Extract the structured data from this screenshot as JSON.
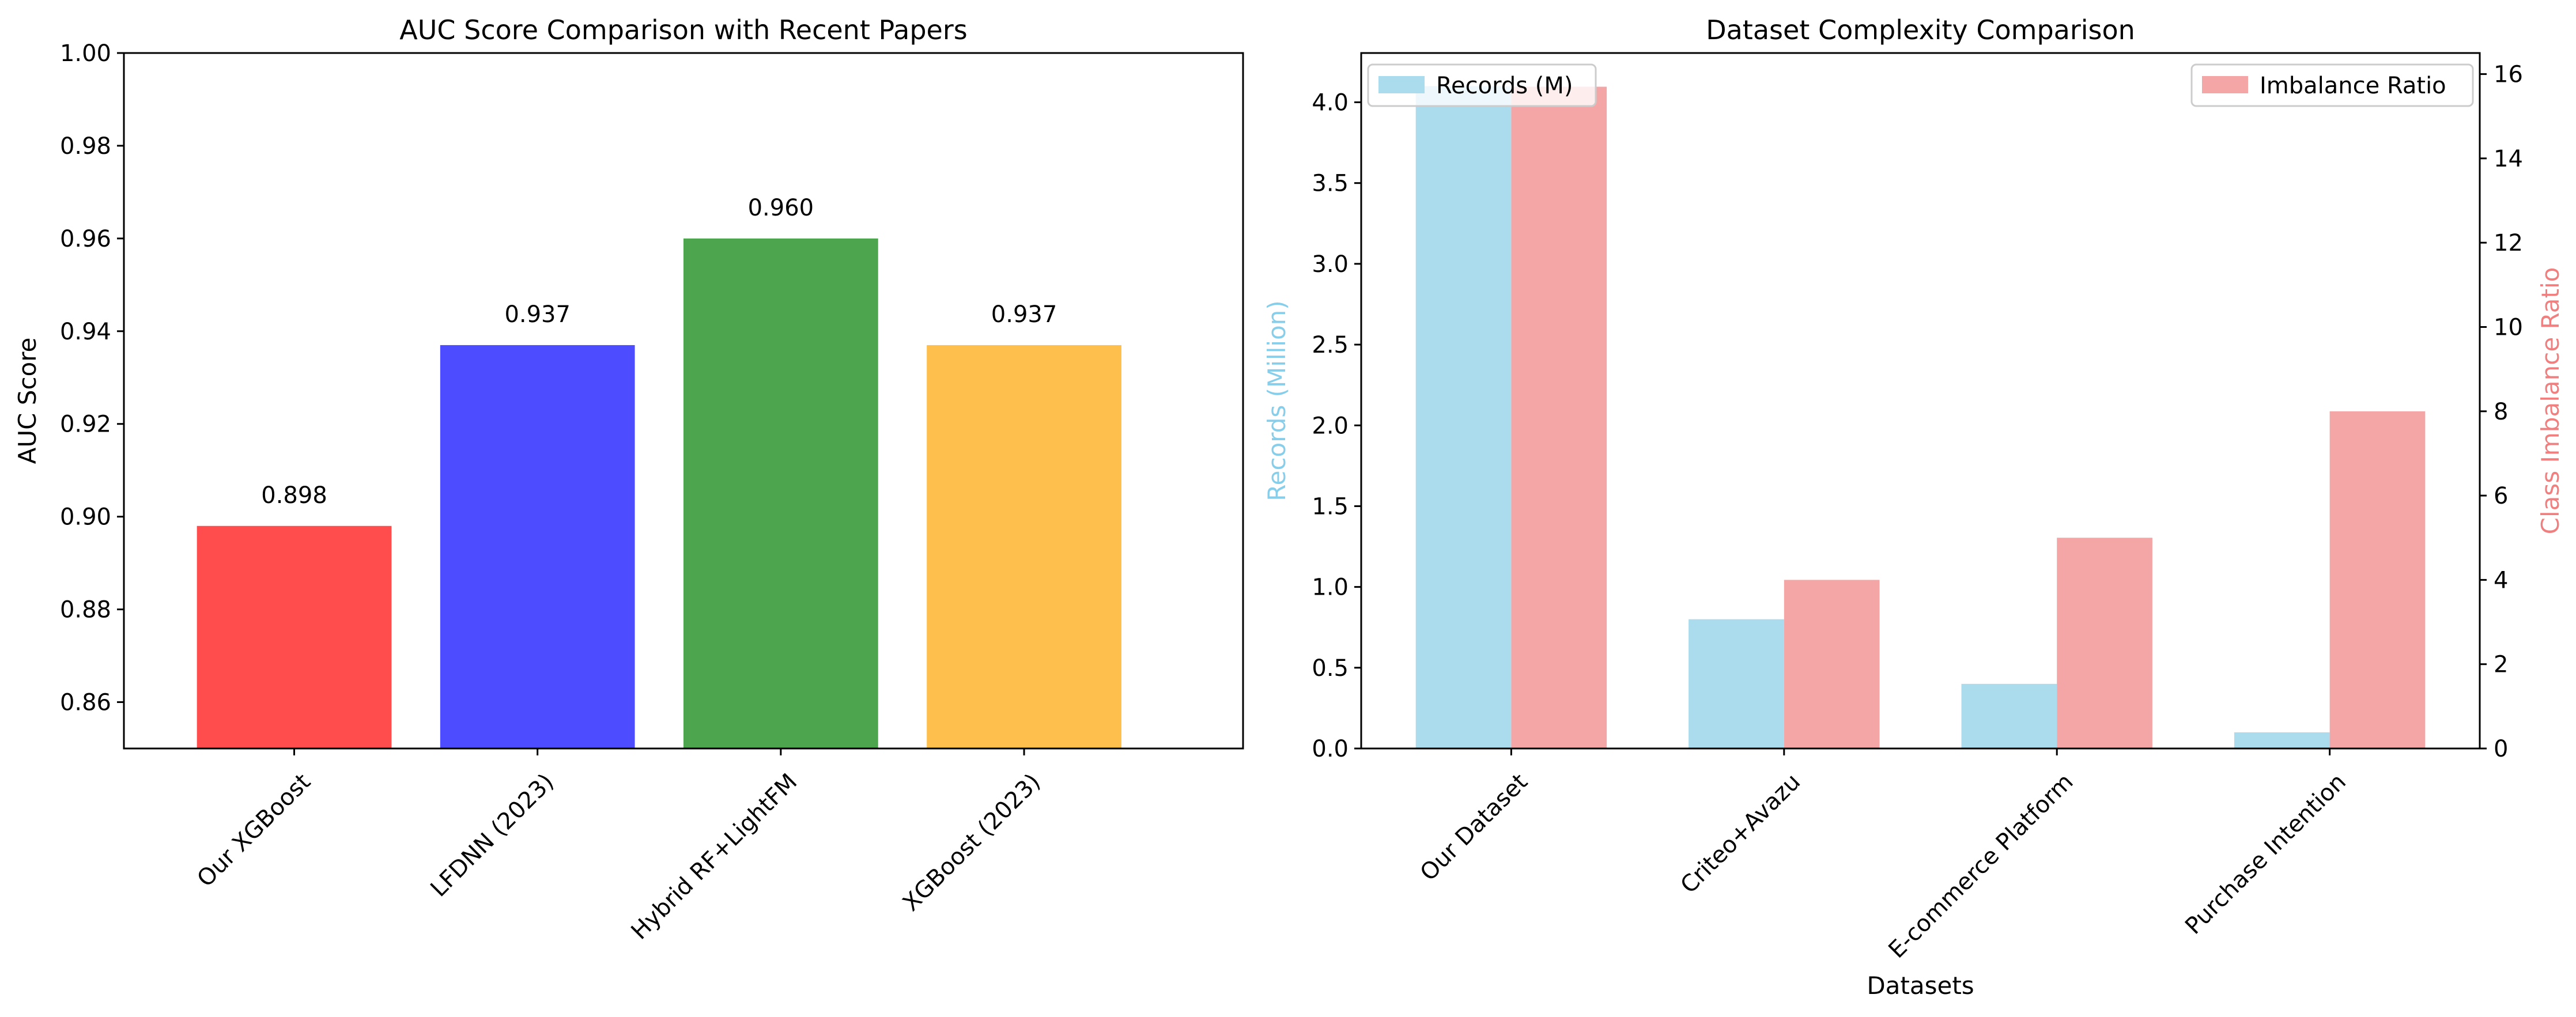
{
  "chart_data": [
    {
      "type": "bar",
      "title": "AUC Score Comparison with Recent Papers",
      "xlabel": "",
      "ylabel": "AUC Score",
      "ylim": [
        0.85,
        1.0
      ],
      "yticks": [
        "0.86",
        "0.88",
        "0.90",
        "0.92",
        "0.94",
        "0.96",
        "0.98",
        "1.00"
      ],
      "categories": [
        "Our XGBoost",
        "LFDNN (2023)",
        "Hybrid RF+LightFM",
        "XGBoost (2023)"
      ],
      "values": [
        0.898,
        0.937,
        0.96,
        0.937
      ],
      "value_labels": [
        "0.898",
        "0.937",
        "0.960",
        "0.937"
      ],
      "colors": [
        "#ff4d4d",
        "#4d4dff",
        "#4da64d",
        "#ffbf4d"
      ],
      "grid": false
    },
    {
      "type": "bar",
      "title": "Dataset Complexity Comparison",
      "xlabel": "Datasets",
      "ylabel_left": "Records (Million)",
      "ylabel_right": "Class Imbalance Ratio",
      "ylim_left": [
        0,
        4.305
      ],
      "ylim_right": [
        0,
        16.5
      ],
      "yticks_left": [
        "0.0",
        "0.5",
        "1.0",
        "1.5",
        "2.0",
        "2.5",
        "3.0",
        "3.5",
        "4.0"
      ],
      "yticks_right": [
        "0",
        "2",
        "4",
        "6",
        "8",
        "10",
        "12",
        "14",
        "16"
      ],
      "categories": [
        "Our Dataset",
        "Criteo+Avazu",
        "E-commerce Platform",
        "Purchase Intention"
      ],
      "series": [
        {
          "name": "Records (M)",
          "axis": "left",
          "values": [
            4.1,
            0.8,
            0.4,
            0.1
          ],
          "color": "#aadcee"
        },
        {
          "name": "Imbalance Ratio",
          "axis": "right",
          "values": [
            15.7,
            4.0,
            5.0,
            8.0
          ],
          "color": "#f4a6a6"
        }
      ],
      "legend": [
        "upper left",
        "upper right"
      ],
      "left_label_color": "#87ceeb",
      "right_label_color": "#f08080",
      "grid": false
    }
  ]
}
